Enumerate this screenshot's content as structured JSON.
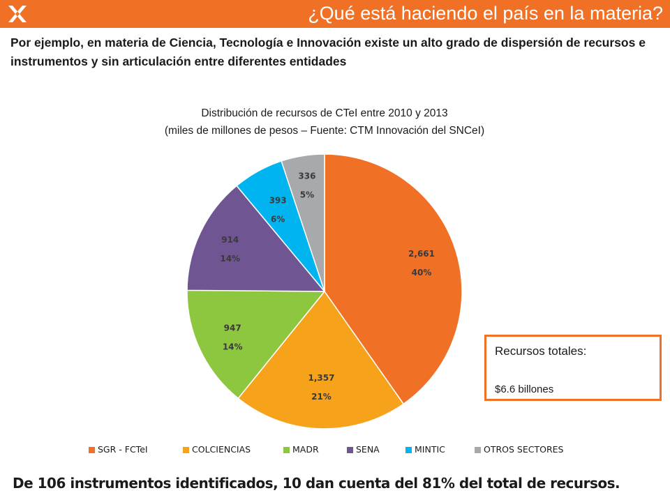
{
  "header": {
    "title": "¿Qué está haciendo el país en la materia?",
    "color": "#f07125",
    "logo_icon": "x-star-logo-icon"
  },
  "intro": "Por ejemplo, en materia de Ciencia, Tecnología e Innovación existe un alto grado de dispersión de recursos e instrumentos y sin articulación entre diferentes entidades",
  "chart_data": {
    "type": "pie",
    "title": "Distribución de recursos de CTeI entre 2010 y 2013",
    "subtitle": "(miles de millones de pesos – Fuente: CTM Innovación del SNCeI)",
    "categories": [
      "SGR - FCTeI",
      "COLCIENCIAS",
      "MADR",
      "SENA",
      "MINTIC",
      "OTROS SECTORES"
    ],
    "values": [
      2661,
      1357,
      947,
      914,
      393,
      336
    ],
    "value_labels": [
      "2,661",
      "1,357",
      "947",
      "914",
      "393",
      "336"
    ],
    "percent_labels": [
      "40%",
      "21%",
      "14%",
      "14%",
      "6%",
      "5%"
    ],
    "colors": [
      "#f07125",
      "#f7a21b",
      "#8dc63f",
      "#6f5592",
      "#00b4f0",
      "#a7a9ac"
    ],
    "legend_position": "bottom"
  },
  "total": {
    "label": "Recursos totales:",
    "value": "$6.6 billones"
  },
  "footer": "De 106 instrumentos identificados, 10 dan cuenta del 81% del total de recursos."
}
